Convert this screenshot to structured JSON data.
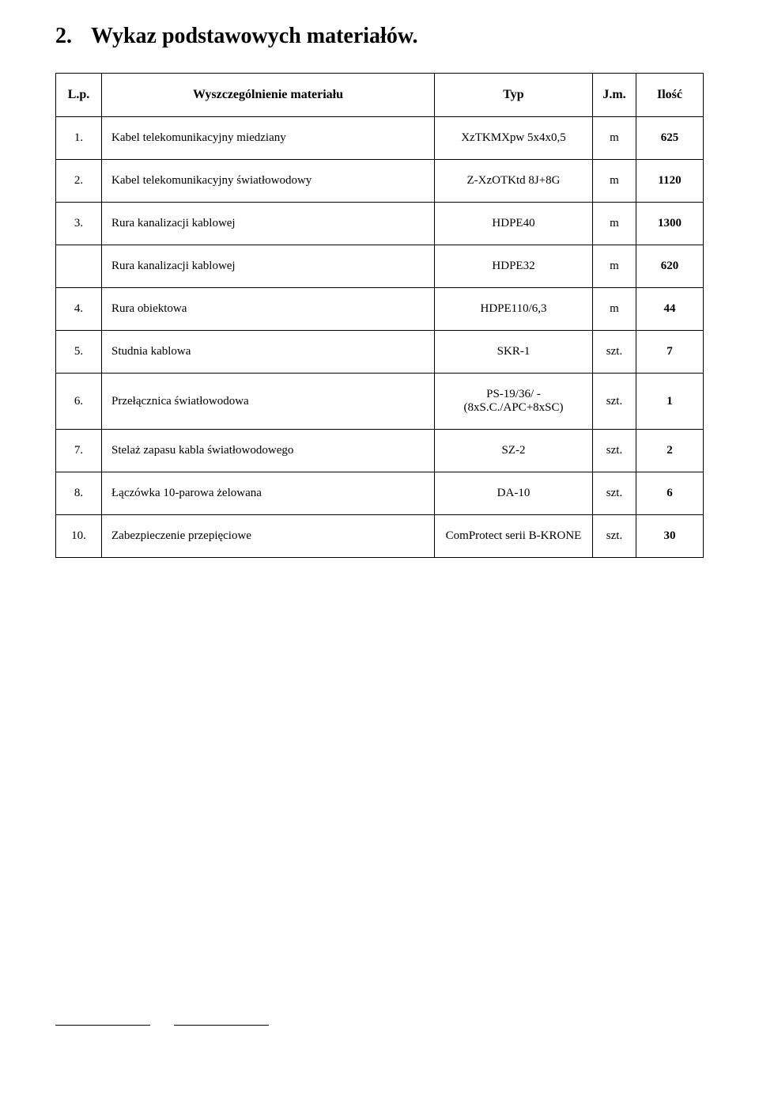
{
  "heading": {
    "number": "2.",
    "title": "Wykaz podstawowych materiałów."
  },
  "table": {
    "headers": {
      "lp": "L.p.",
      "desc": "Wyszczególnienie materiału",
      "type": "Typ",
      "unit": "J.m.",
      "qty": "Ilość"
    },
    "rows": [
      {
        "lp": "1.",
        "desc": "Kabel telekomunikacyjny miedziany",
        "type": "XzTKMXpw 5x4x0,5",
        "unit": "m",
        "qty": "625"
      },
      {
        "lp": "2.",
        "desc": "Kabel telekomunikacyjny światłowodowy",
        "type": "Z-XzOTKtd 8J+8G",
        "unit": "m",
        "qty": "1120"
      },
      {
        "lp": "3.",
        "desc": "Rura kanalizacji kablowej",
        "type": "HDPE40",
        "unit": "m",
        "qty": "1300"
      },
      {
        "lp": "",
        "desc": "Rura kanalizacji kablowej",
        "type": "HDPE32",
        "unit": "m",
        "qty": "620"
      },
      {
        "lp": "4.",
        "desc": "Rura obiektowa",
        "type": "HDPE110/6,3",
        "unit": "m",
        "qty": "44"
      },
      {
        "lp": "5.",
        "desc": "Studnia kablowa",
        "type": "SKR-1",
        "unit": "szt.",
        "qty": "7"
      },
      {
        "lp": "6.",
        "desc": "Przełącznica światłowodowa",
        "type": "PS-19/36/ - (8xS.C./APC+8xSC)",
        "unit": "szt.",
        "qty": "1"
      },
      {
        "lp": "7.",
        "desc": "Stelaż zapasu kabla światłowodowego",
        "type": "SZ-2",
        "unit": "szt.",
        "qty": "2"
      },
      {
        "lp": "8.",
        "desc": "Łączówka 10-parowa żelowana",
        "type": "DA-10",
        "unit": "szt.",
        "qty": "6"
      },
      {
        "lp": "10.",
        "desc": "Zabezpieczenie przepięciowe",
        "type": "ComProtect serii B-KRONE",
        "unit": "szt.",
        "qty": "30"
      }
    ]
  }
}
